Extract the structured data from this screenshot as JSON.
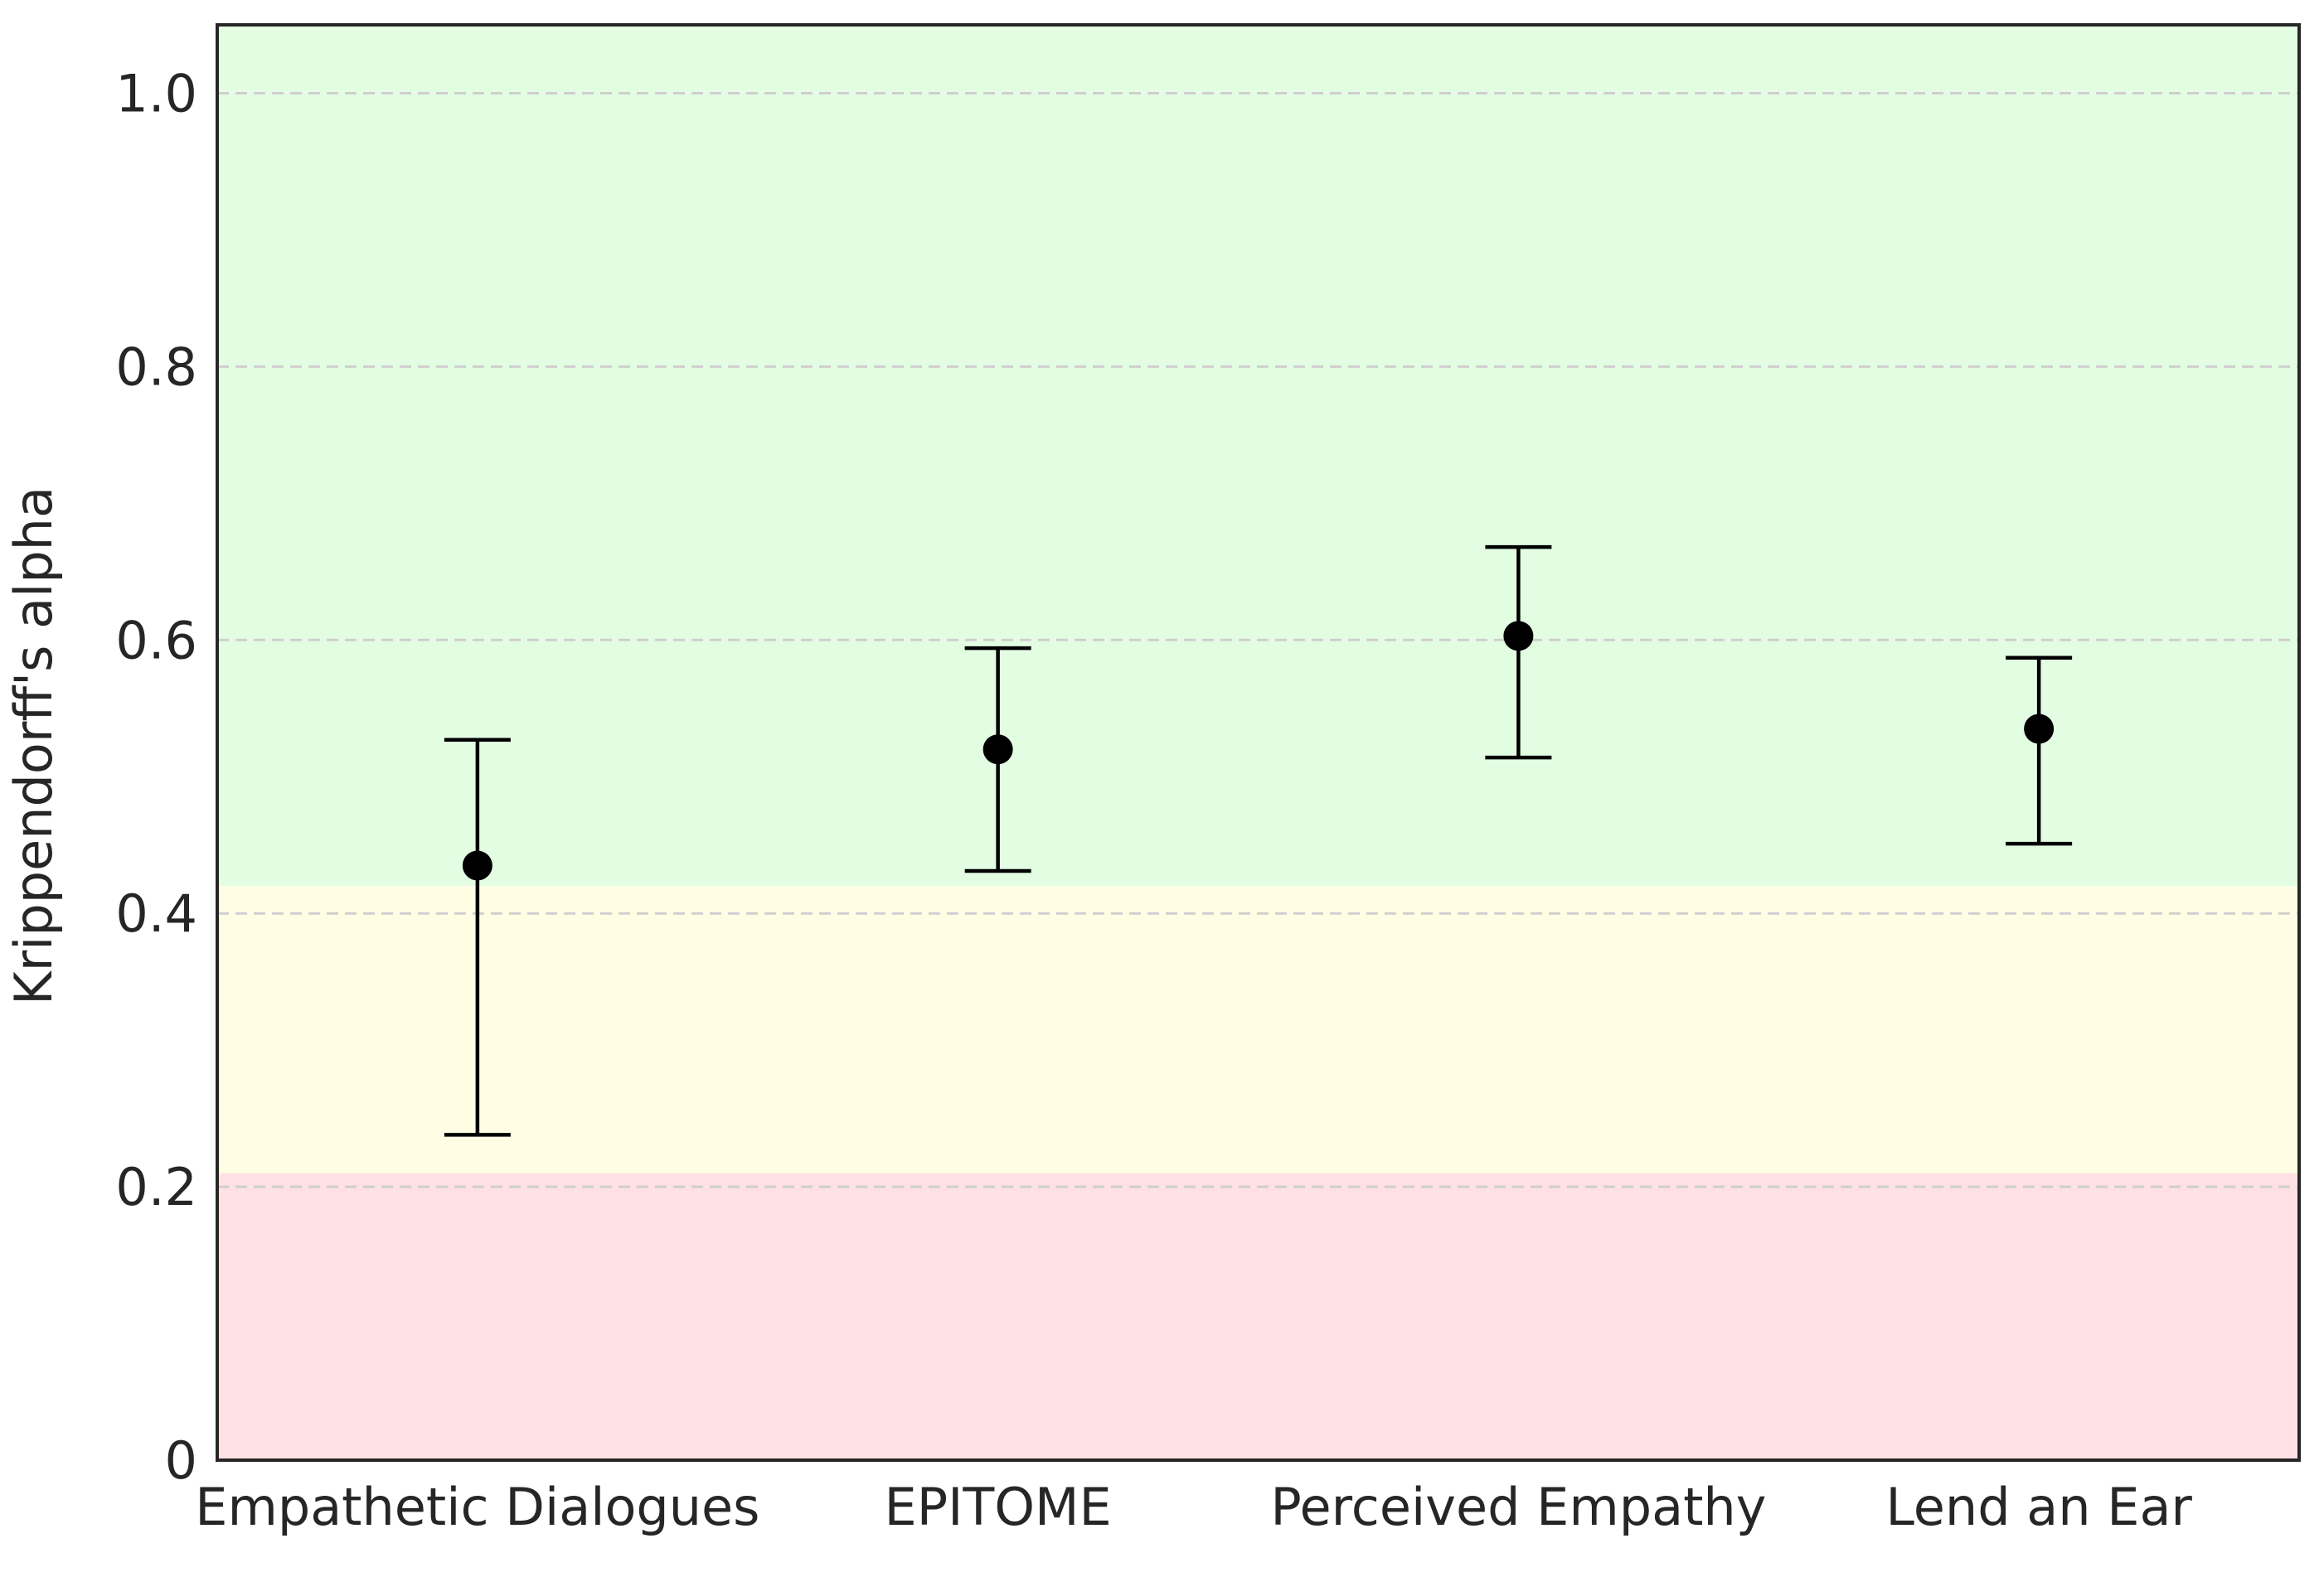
{
  "chart_data": {
    "type": "scatter",
    "subtype": "point-with-error-bars",
    "title": "",
    "xlabel": "",
    "ylabel": "Krippendorff's alpha",
    "categories": [
      "Empathetic Dialogues",
      "EPITOME",
      "Perceived Empathy",
      "Lend an Ear"
    ],
    "values": [
      0.435,
      0.52,
      0.603,
      0.535
    ],
    "error_low": [
      0.238,
      0.431,
      0.514,
      0.451
    ],
    "error_high": [
      0.527,
      0.594,
      0.668,
      0.587
    ],
    "ylim": [
      0,
      1.05
    ],
    "yticks": [
      0,
      0.2,
      0.4,
      0.6,
      0.8,
      1.0
    ],
    "ytick_labels": [
      "0",
      "0.2",
      "0.4",
      "0.6",
      "0.8",
      "1.0"
    ],
    "grid": "horizontal dashed",
    "legend": "none",
    "bands": [
      {
        "from": 0,
        "to": 0.21,
        "color": "#ffe0e3"
      },
      {
        "from": 0.21,
        "to": 0.42,
        "color": "#fffee4"
      },
      {
        "from": 0.42,
        "to": 1.05,
        "color": "#e3fde3"
      }
    ],
    "marker_color": "#000000"
  }
}
